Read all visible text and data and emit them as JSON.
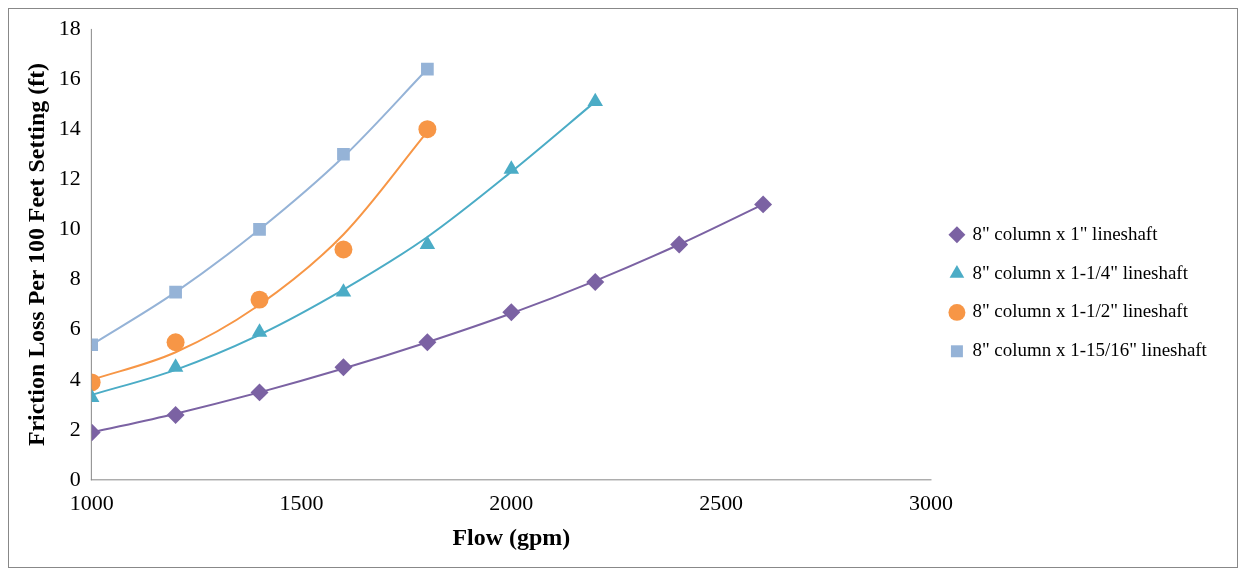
{
  "chart_data": {
    "type": "scatter",
    "xlabel": "Flow (gpm)",
    "ylabel": "Friction Loss Per 100 Feet Setting (ft)",
    "xlim": [
      1000,
      3000
    ],
    "xticks": [
      1000,
      1500,
      2000,
      2500,
      3000
    ],
    "ylim": [
      0,
      18
    ],
    "yticks": [
      0,
      2,
      4,
      6,
      8,
      10,
      12,
      14,
      16,
      18
    ],
    "grid": false,
    "legend": "right",
    "series": [
      {
        "name": "8\" column x 1\" lineshaft",
        "marker": "diamond",
        "color": "#7b62a3",
        "x": [
          1000,
          1200,
          1400,
          1600,
          1800,
          2000,
          2200,
          2400,
          2600
        ],
        "values": [
          1.9,
          2.6,
          3.5,
          4.5,
          5.5,
          6.7,
          7.9,
          9.4,
          11.0
        ]
      },
      {
        "name": "8\" column x 1-1/4\" lineshaft",
        "marker": "triangle",
        "color": "#4bacc6",
        "x": [
          1000,
          1200,
          1400,
          1600,
          1800,
          2000,
          2200
        ],
        "values": [
          3.3,
          4.5,
          5.9,
          7.5,
          9.4,
          12.4,
          15.1
        ]
      },
      {
        "name": "8\" column x 1-1/2\" lineshaft",
        "marker": "circle",
        "color": "#f79646",
        "x": [
          1000,
          1200,
          1400,
          1600,
          1800
        ],
        "values": [
          3.9,
          5.5,
          7.2,
          9.2,
          14.0
        ]
      },
      {
        "name": "8\" column x 1-15/16\" lineshaft",
        "marker": "square",
        "color": "#95b3d7",
        "x": [
          1000,
          1200,
          1400,
          1600,
          1800
        ],
        "values": [
          5.4,
          7.5,
          10.0,
          13.0,
          16.4
        ]
      },
      {
        "type": "line",
        "marker": "none",
        "color": "#7b62a3",
        "x": [
          1000,
          1200,
          1400,
          1600,
          1800,
          2000,
          2200,
          2400,
          2600
        ],
        "values": [
          1.9,
          2.65,
          3.5,
          4.45,
          5.5,
          6.65,
          7.95,
          9.4,
          11.0
        ]
      },
      {
        "type": "line",
        "marker": "none",
        "color": "#4bacc6",
        "x": [
          1000,
          1200,
          1400,
          1600,
          1800,
          2000,
          2200
        ],
        "values": [
          3.4,
          4.4,
          5.8,
          7.6,
          9.7,
          12.3,
          15.1
        ]
      },
      {
        "type": "line",
        "marker": "none",
        "color": "#f79646",
        "x": [
          1000,
          1200,
          1400,
          1600,
          1800
        ],
        "values": [
          4.0,
          5.1,
          7.0,
          9.8,
          13.9
        ]
      },
      {
        "type": "line",
        "marker": "none",
        "color": "#95b3d7",
        "x": [
          1000,
          1200,
          1400,
          1600,
          1800
        ],
        "values": [
          5.4,
          7.5,
          10.0,
          12.9,
          16.4
        ]
      }
    ]
  }
}
